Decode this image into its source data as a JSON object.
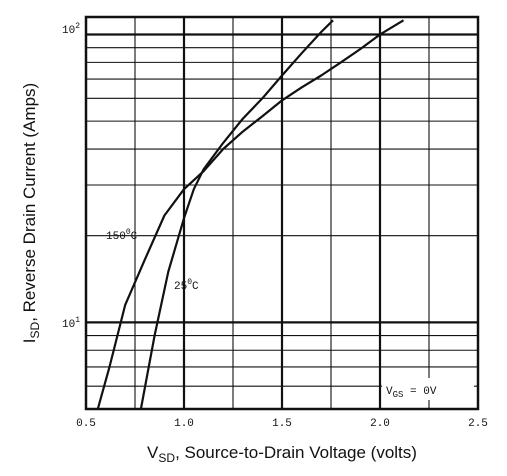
{
  "chart_data": {
    "type": "line",
    "xlabel_main": "V",
    "xlabel_sub": "SD",
    "xlabel_rest": ", Source-to-Drain Voltage (volts)",
    "ylabel_main": "I",
    "ylabel_sub": "SD",
    "ylabel_rest": ", Reverse Drain Current (Amps)",
    "x_ticks": [
      "0.5",
      "1.0",
      "1.5",
      "2.0",
      "2.5"
    ],
    "y_ticks": [
      {
        "base": "10",
        "exp": "2",
        "value": 100
      },
      {
        "base": "10",
        "exp": "1",
        "value": 10
      }
    ],
    "xlim": [
      0.5,
      2.5
    ],
    "ylim": [
      5,
      115
    ],
    "y_scale": "log",
    "grid": true,
    "condition_label": {
      "main": "V",
      "sub": "GS",
      "rest": " = 0V"
    },
    "series": [
      {
        "name": "150°C",
        "x": [
          0.56,
          0.62,
          0.7,
          0.8,
          0.9,
          1.0,
          1.1,
          1.2,
          1.3,
          1.4,
          1.5,
          1.6,
          1.7,
          1.8,
          1.9,
          2.0,
          2.12
        ],
        "y": [
          5.0,
          7.0,
          11.5,
          16.5,
          23.5,
          29.0,
          33.5,
          40.0,
          46.0,
          52.0,
          59.0,
          65.5,
          72.0,
          80.0,
          89.0,
          100.0,
          112.0
        ]
      },
      {
        "name": "25°C",
        "x": [
          0.78,
          0.85,
          0.92,
          1.0,
          1.05,
          1.1,
          1.2,
          1.3,
          1.4,
          1.5,
          1.6,
          1.7,
          1.76
        ],
        "y": [
          5.0,
          9.0,
          15.0,
          23.0,
          29.0,
          34.0,
          42.0,
          51.0,
          60.0,
          72.0,
          86.0,
          102.0,
          112.0
        ]
      }
    ]
  },
  "series_labels": [
    {
      "text_main": "150",
      "text_sup": "0",
      "text_unit": "C"
    },
    {
      "text_main": "25",
      "text_sup": "0",
      "text_unit": "C"
    }
  ]
}
